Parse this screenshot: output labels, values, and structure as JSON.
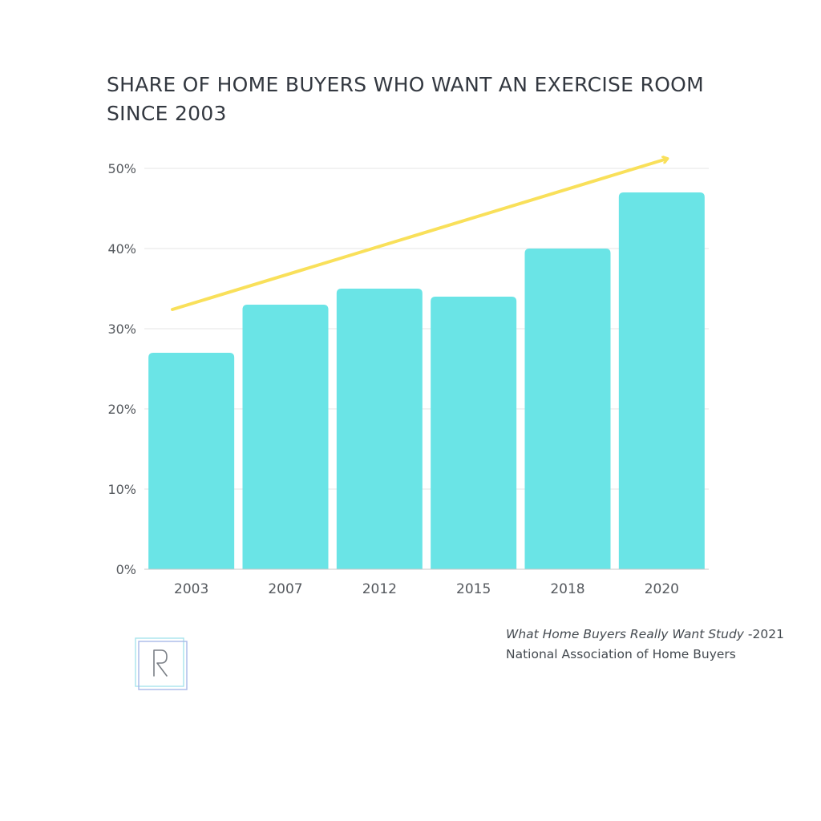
{
  "title_lines": [
    "SHARE OF HOME BUYERS WHO WANT AN EXERCISE ROOM",
    "SINCE 2003"
  ],
  "chart_data": {
    "type": "bar",
    "title": "SHARE OF HOME BUYERS WHO WANT AN EXERCISE ROOM SINCE 2003",
    "categories": [
      "2003",
      "2007",
      "2012",
      "2015",
      "2018",
      "2020"
    ],
    "values": [
      27,
      33,
      35,
      34,
      40,
      47
    ],
    "unit": "%",
    "ylim": [
      0,
      50
    ],
    "yticks": [
      0,
      10,
      20,
      30,
      40,
      50
    ],
    "ytick_labels": [
      "0%",
      "10%",
      "20%",
      "30%",
      "40%",
      "50%"
    ],
    "grid": true,
    "legend": "none",
    "trend_arrow": true,
    "colors": {
      "bar": "#6ae4e6",
      "arrow": "#f9e05a",
      "grid": "#e6e6e6",
      "axis": "#c8c8c8",
      "tick_text": "#55595e"
    }
  },
  "source": {
    "study_name": "What Home Buyers Really Want Study",
    "study_year": " -2021",
    "organization": "National Association of Home Buyers"
  },
  "logo": {
    "letter": "R",
    "colors": [
      "#a7e3ec",
      "#a9b9e8"
    ]
  }
}
